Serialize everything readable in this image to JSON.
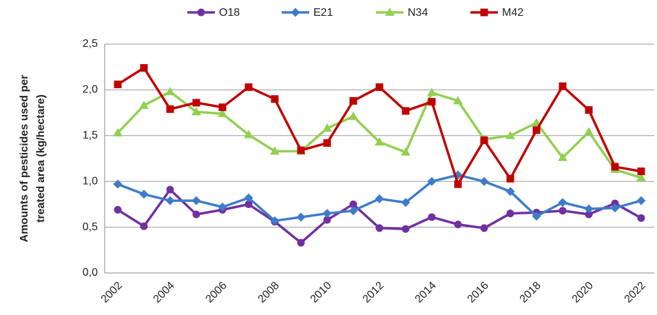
{
  "chart_data": {
    "type": "line",
    "ylabel": [
      "Amounts of pesticides used per",
      "treated area (kg/hectare)"
    ],
    "categories": [
      "2002",
      null,
      "2004",
      null,
      "2006",
      null,
      "2008",
      null,
      "2010",
      null,
      "2012",
      null,
      "2014",
      null,
      "2016",
      null,
      "2018",
      null,
      "2020",
      null,
      "2022"
    ],
    "series": [
      {
        "name": "O18",
        "color": "#7030a0",
        "marker": "circle",
        "values": [
          0.69,
          0.51,
          0.91,
          0.64,
          0.69,
          0.75,
          0.56,
          0.33,
          0.58,
          0.75,
          0.49,
          0.48,
          0.61,
          0.53,
          0.49,
          0.65,
          0.66,
          0.68,
          0.64,
          0.76,
          0.6
        ]
      },
      {
        "name": "E21",
        "color": "#3d7cc9",
        "marker": "diamond",
        "values": [
          0.97,
          0.86,
          0.79,
          0.79,
          0.72,
          0.82,
          0.57,
          0.61,
          0.65,
          0.68,
          0.81,
          0.77,
          1.0,
          1.07,
          1.0,
          0.89,
          0.62,
          0.77,
          0.7,
          0.71,
          0.79
        ]
      },
      {
        "name": "N34",
        "color": "#92d050",
        "marker": "triangle",
        "values": [
          1.53,
          1.83,
          1.98,
          1.76,
          1.74,
          1.51,
          1.33,
          1.33,
          1.58,
          1.71,
          1.43,
          1.32,
          1.97,
          1.88,
          1.46,
          1.5,
          1.64,
          1.26,
          1.54,
          1.13,
          1.04
        ]
      },
      {
        "name": "M42",
        "color": "#c00000",
        "marker": "square",
        "values": [
          2.06,
          2.24,
          1.79,
          1.86,
          1.81,
          2.03,
          1.9,
          1.34,
          1.42,
          1.88,
          2.03,
          1.77,
          1.87,
          0.97,
          1.45,
          1.03,
          1.56,
          2.04,
          1.78,
          1.16,
          1.11
        ]
      }
    ],
    "ylim": [
      0,
      2.5
    ],
    "yticks": [
      {
        "value": 0,
        "label": "0,0"
      },
      {
        "value": 0.5,
        "label": "0,5"
      },
      {
        "value": 1,
        "label": "1,0"
      },
      {
        "value": 1.5,
        "label": "1,5"
      },
      {
        "value": 2,
        "label": "2,0"
      },
      {
        "value": 2.5,
        "label": "2,5"
      }
    ],
    "grid": true,
    "legend": "top"
  }
}
